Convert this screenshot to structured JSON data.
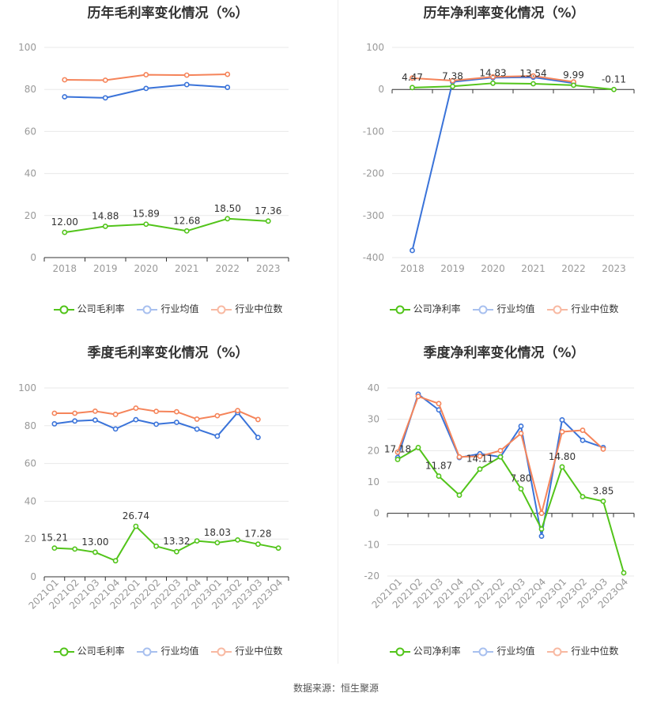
{
  "source_label": "数据来源：恒生聚源",
  "colors": {
    "company": "#52c41a",
    "avg": "#3a73d9",
    "median": "#f5845a"
  },
  "chart_data": [
    {
      "type": "line",
      "title": "历年毛利率变化情况（%）",
      "categories": [
        "2018",
        "2019",
        "2020",
        "2021",
        "2022",
        "2023"
      ],
      "ylim": [
        0,
        100
      ],
      "yticks": [
        0,
        20,
        40,
        60,
        80,
        100
      ],
      "legend": [
        "公司毛利率",
        "行业均值",
        "行业中位数"
      ],
      "series": [
        {
          "name": "公司毛利率",
          "values": [
            12.0,
            14.88,
            15.89,
            12.68,
            18.5,
            17.36
          ]
        },
        {
          "name": "行业均值",
          "values": [
            76.5,
            76.0,
            80.5,
            82.3,
            81.0,
            null
          ]
        },
        {
          "name": "行业中位数",
          "values": [
            84.6,
            84.4,
            87.0,
            86.8,
            87.2,
            null
          ]
        }
      ],
      "labels": [
        "12.00",
        "14.88",
        "15.89",
        "12.68",
        "18.50",
        "17.36"
      ]
    },
    {
      "type": "line",
      "title": "历年净利率变化情况（%）",
      "categories": [
        "2018",
        "2019",
        "2020",
        "2021",
        "2022",
        "2023"
      ],
      "ylim": [
        -400,
        100
      ],
      "yticks": [
        -400,
        -300,
        -200,
        -100,
        0,
        100
      ],
      "legend": [
        "公司净利率",
        "行业均值",
        "行业中位数"
      ],
      "series": [
        {
          "name": "公司净利率",
          "values": [
            4.47,
            7.38,
            14.83,
            13.54,
            9.99,
            -0.11
          ]
        },
        {
          "name": "行业均值",
          "values": [
            -383,
            18,
            28,
            29,
            15,
            null
          ]
        },
        {
          "name": "行业中位数",
          "values": [
            27,
            21,
            30,
            32,
            18,
            null
          ]
        }
      ],
      "labels": [
        "4.47",
        "7.38",
        "14.83",
        "13.54",
        "9.99",
        "-0.11"
      ]
    },
    {
      "type": "line",
      "title": "季度毛利率变化情况（%）",
      "categories": [
        "2021Q1",
        "2021Q2",
        "2021Q3",
        "2021Q4",
        "2022Q1",
        "2022Q2",
        "2022Q3",
        "2022Q4",
        "2023Q1",
        "2023Q2",
        "2023Q3",
        "2023Q4"
      ],
      "ylim": [
        0,
        100
      ],
      "yticks": [
        0,
        20,
        40,
        60,
        80,
        100
      ],
      "legend": [
        "公司毛利率",
        "行业均值",
        "行业中位数"
      ],
      "series": [
        {
          "name": "公司毛利率",
          "values": [
            15.21,
            14.7,
            13.0,
            8.5,
            26.74,
            16.2,
            13.32,
            19.0,
            18.03,
            19.5,
            17.28,
            15.2
          ]
        },
        {
          "name": "行业均值",
          "values": [
            81.0,
            82.5,
            83.0,
            78.3,
            83.2,
            80.8,
            81.8,
            78.2,
            74.5,
            87.0,
            73.8,
            null
          ]
        },
        {
          "name": "行业中位数",
          "values": [
            86.6,
            86.6,
            87.7,
            86.0,
            89.3,
            87.6,
            87.4,
            83.5,
            85.3,
            88.0,
            83.3,
            null
          ]
        }
      ],
      "labels": [
        "15.21",
        "",
        "13.00",
        "",
        "26.74",
        "",
        "13.32",
        "",
        "18.03",
        "",
        "17.28",
        ""
      ]
    },
    {
      "type": "line",
      "title": "季度净利率变化情况（%）",
      "categories": [
        "2021Q1",
        "2021Q2",
        "2021Q3",
        "2021Q4",
        "2022Q1",
        "2022Q2",
        "2022Q3",
        "2022Q4",
        "2023Q1",
        "2023Q2",
        "2023Q3",
        "2023Q4"
      ],
      "ylim": [
        -20,
        40
      ],
      "yticks": [
        -20,
        -10,
        0,
        10,
        20,
        30,
        40
      ],
      "legend": [
        "公司净利率",
        "行业均值",
        "行业中位数"
      ],
      "series": [
        {
          "name": "公司净利率",
          "values": [
            17.18,
            21.0,
            11.87,
            5.8,
            14.11,
            18.0,
            7.8,
            -5.0,
            14.8,
            5.3,
            3.85,
            -19.0
          ]
        },
        {
          "name": "行业均值",
          "values": [
            17.8,
            38.0,
            33.0,
            17.8,
            19.0,
            18.0,
            27.8,
            -7.3,
            29.8,
            23.3,
            21.0,
            null
          ]
        },
        {
          "name": "行业中位数",
          "values": [
            19.5,
            37.3,
            35.0,
            18.0,
            18.2,
            20.0,
            25.5,
            0.0,
            26.0,
            26.5,
            20.5,
            null
          ]
        }
      ],
      "labels": [
        "17.18",
        "",
        "11.87",
        "",
        "14.11",
        "",
        "7.80",
        "",
        "14.80",
        "",
        "3.85",
        ""
      ]
    }
  ]
}
